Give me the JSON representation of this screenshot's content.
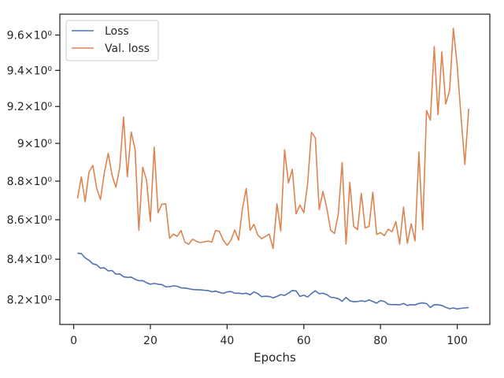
{
  "chart_data": {
    "type": "line",
    "xlabel": "Epochs",
    "ylabel": "",
    "x_scale": "linear",
    "y_scale": "log",
    "xlim": [
      -3.6,
      108.5
    ],
    "ylim": [
      8.08,
      9.72
    ],
    "grid": false,
    "legend": "top-left",
    "x_ticks": [
      {
        "value": 0,
        "label": "0"
      },
      {
        "value": 20,
        "label": "20"
      },
      {
        "value": 40,
        "label": "40"
      },
      {
        "value": 60,
        "label": "60"
      },
      {
        "value": 80,
        "label": "80"
      },
      {
        "value": 100,
        "label": "100"
      }
    ],
    "y_ticks": [
      {
        "value": 8.2,
        "label": "8.2×10⁰"
      },
      {
        "value": 8.4,
        "label": "8.4×10⁰"
      },
      {
        "value": 8.6,
        "label": "8.6×10⁰"
      },
      {
        "value": 8.8,
        "label": "8.8×10⁰"
      },
      {
        "value": 9.0,
        "label": "9×10⁰"
      },
      {
        "value": 9.2,
        "label": "9.2×10⁰"
      },
      {
        "value": 9.4,
        "label": "9.4×10⁰"
      },
      {
        "value": 9.6,
        "label": "9.6×10⁰"
      }
    ],
    "series": [
      {
        "name": "Loss",
        "color": "#4c72b0",
        "x": [
          1,
          2,
          3,
          4,
          5,
          6,
          7,
          8,
          9,
          10,
          11,
          12,
          13,
          14,
          15,
          16,
          17,
          18,
          19,
          20,
          21,
          22,
          23,
          24,
          25,
          26,
          27,
          28,
          29,
          30,
          31,
          32,
          33,
          34,
          35,
          36,
          37,
          38,
          39,
          40,
          41,
          42,
          43,
          44,
          45,
          46,
          47,
          48,
          49,
          50,
          51,
          52,
          53,
          54,
          55,
          56,
          57,
          58,
          59,
          60,
          61,
          62,
          63,
          64,
          65,
          66,
          67,
          68,
          69,
          70,
          71,
          72,
          73,
          74,
          75,
          76,
          77,
          78,
          79,
          80,
          81,
          82,
          83,
          84,
          85,
          86,
          87,
          88,
          89,
          90,
          91,
          92,
          93,
          94,
          95,
          96,
          97,
          98,
          99,
          100,
          101,
          102,
          103
        ],
        "values": [
          8.43,
          8.428,
          8.407,
          8.395,
          8.377,
          8.372,
          8.355,
          8.357,
          8.342,
          8.344,
          8.326,
          8.327,
          8.313,
          8.31,
          8.311,
          8.3,
          8.293,
          8.294,
          8.283,
          8.276,
          8.28,
          8.276,
          8.274,
          8.263,
          8.264,
          8.268,
          8.266,
          8.258,
          8.257,
          8.254,
          8.25,
          8.249,
          8.248,
          8.246,
          8.245,
          8.239,
          8.242,
          8.236,
          8.231,
          8.238,
          8.24,
          8.232,
          8.232,
          8.229,
          8.232,
          8.224,
          8.238,
          8.23,
          8.215,
          8.217,
          8.216,
          8.209,
          8.216,
          8.225,
          8.221,
          8.232,
          8.245,
          8.243,
          8.216,
          8.222,
          8.213,
          8.23,
          8.244,
          8.229,
          8.232,
          8.225,
          8.212,
          8.21,
          8.205,
          8.192,
          8.211,
          8.195,
          8.19,
          8.191,
          8.195,
          8.191,
          8.199,
          8.191,
          8.183,
          8.196,
          8.191,
          8.178,
          8.176,
          8.176,
          8.175,
          8.182,
          8.172,
          8.176,
          8.174,
          8.182,
          8.184,
          8.181,
          8.162,
          8.176,
          8.175,
          8.172,
          8.163,
          8.156,
          8.16,
          8.155,
          8.158,
          8.16,
          8.162
        ]
      },
      {
        "name": "Val. loss",
        "color": "#dd8452",
        "x": [
          1,
          2,
          3,
          4,
          5,
          6,
          7,
          8,
          9,
          10,
          11,
          12,
          13,
          14,
          15,
          16,
          17,
          18,
          19,
          20,
          21,
          22,
          23,
          24,
          25,
          26,
          27,
          28,
          29,
          30,
          31,
          32,
          33,
          34,
          35,
          36,
          37,
          38,
          39,
          40,
          41,
          42,
          43,
          44,
          45,
          46,
          47,
          48,
          49,
          50,
          51,
          52,
          53,
          54,
          55,
          56,
          57,
          58,
          59,
          60,
          61,
          62,
          63,
          64,
          65,
          66,
          67,
          68,
          69,
          70,
          71,
          72,
          73,
          74,
          75,
          76,
          77,
          78,
          79,
          80,
          81,
          82,
          83,
          84,
          85,
          86,
          87,
          88,
          89,
          90,
          91,
          92,
          93,
          94,
          95,
          96,
          97,
          98,
          99,
          100,
          101,
          102,
          103
        ],
        "values": [
          8.71,
          8.822,
          8.693,
          8.847,
          8.883,
          8.762,
          8.704,
          8.845,
          8.947,
          8.833,
          8.768,
          8.871,
          9.142,
          8.823,
          9.061,
          8.97,
          8.546,
          8.873,
          8.805,
          8.591,
          8.98,
          8.637,
          8.68,
          8.682,
          8.505,
          8.527,
          8.515,
          8.545,
          8.486,
          8.475,
          8.501,
          8.49,
          8.484,
          8.487,
          8.492,
          8.486,
          8.545,
          8.54,
          8.496,
          8.47,
          8.495,
          8.548,
          8.496,
          8.655,
          8.762,
          8.546,
          8.576,
          8.522,
          8.503,
          8.515,
          8.527,
          8.454,
          8.682,
          8.542,
          8.966,
          8.79,
          8.862,
          8.63,
          8.676,
          8.636,
          8.786,
          9.06,
          9.03,
          8.652,
          8.746,
          8.66,
          8.546,
          8.53,
          8.63,
          8.898,
          8.476,
          8.794,
          8.566,
          8.55,
          8.736,
          8.558,
          8.566,
          8.742,
          8.525,
          8.534,
          8.519,
          8.552,
          8.539,
          8.59,
          8.476,
          8.665,
          8.48,
          8.58,
          8.492,
          8.954,
          8.549,
          9.178,
          9.126,
          9.535,
          9.155,
          9.504,
          9.214,
          9.288,
          9.638,
          9.425,
          9.141,
          8.888,
          9.188
        ]
      }
    ]
  }
}
